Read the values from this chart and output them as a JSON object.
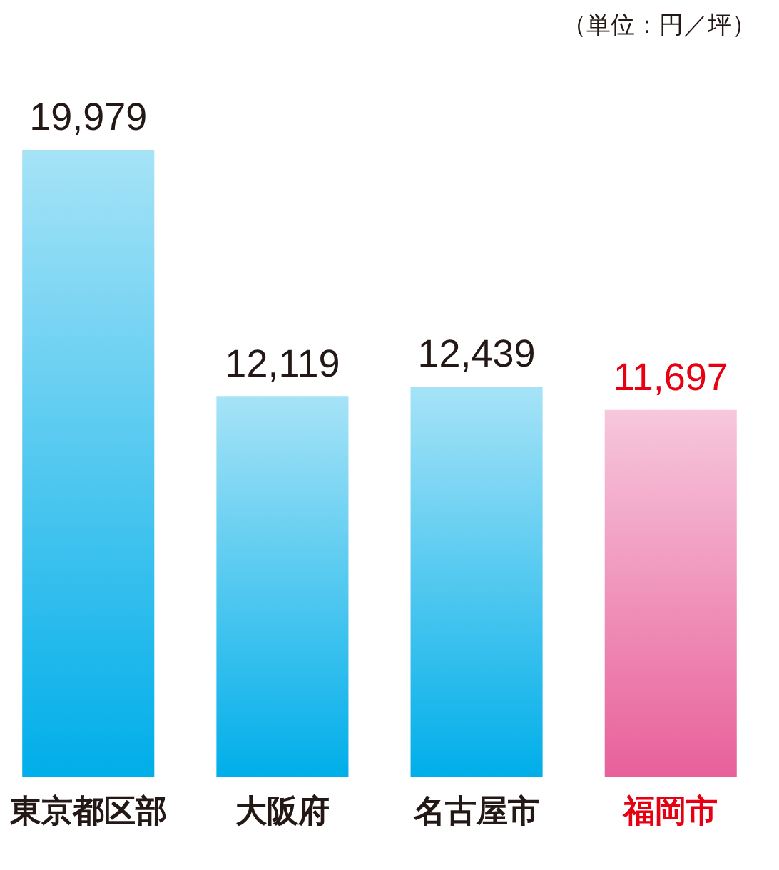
{
  "chart_data": {
    "type": "bar",
    "categories": [
      "東京都区部",
      "大阪府",
      "名古屋市",
      "福岡市"
    ],
    "values": [
      19979,
      12119,
      12439,
      11697
    ],
    "colors": [
      "#00aee9",
      "#00aee9",
      "#00aee9",
      "#e8609a"
    ],
    "value_labels": [
      "19,979",
      "12,119",
      "12,439",
      "11,697"
    ],
    "annotations": [
      "（単位：円／坪）"
    ]
  }
}
